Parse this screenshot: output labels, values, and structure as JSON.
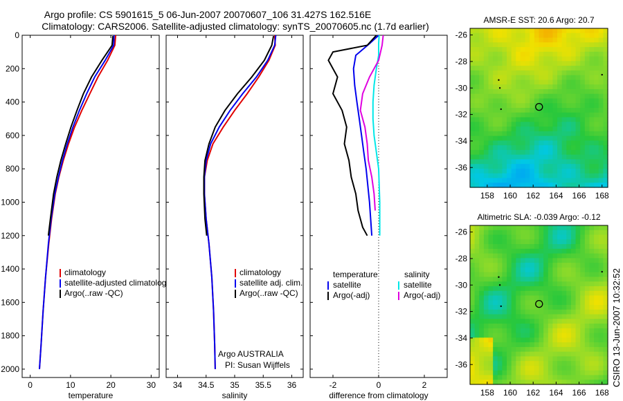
{
  "header": {
    "title_line1": "Argo profile: CS 5901615_5 06-Jun-2007 20070607_106 31.427S 162.516E",
    "title_line2": "Climatology: CARS2006. Satellite-adjusted climatology: synTS_20070605.nc (1.7d earlier)"
  },
  "colors": {
    "climatology": "#e00000",
    "satellite": "#0000ee",
    "argo": "#000000",
    "satellite_salinity": "#00e8e8",
    "argo_salinity": "#e000e0"
  },
  "side_label": "CSIRO 13-Jun-2007 10:32:52",
  "chart_data": [
    {
      "type": "line",
      "xlabel": "temperature",
      "ylabel": "",
      "xlim": [
        -2,
        32
      ],
      "ylim": [
        2050,
        0
      ],
      "y_reversed": true,
      "xticks": [
        "0",
        "10",
        "20",
        "30"
      ],
      "yticks": [
        "0",
        "200",
        "400",
        "600",
        "800",
        "1000",
        "1200",
        "1400",
        "1600",
        "1800",
        "2000"
      ],
      "legend": {
        "placement": "lower-right",
        "entries": [
          "climatology",
          "satellite-adjusted climatology",
          "Argo(..raw -QC)"
        ]
      },
      "series": [
        {
          "name": "climatology",
          "color": "#e00000",
          "x": [
            21.2,
            21.0,
            19.2,
            16.8,
            14.8,
            12.8,
            11.0,
            9.5,
            8.2,
            7.1,
            6.2,
            5.3,
            4.6,
            3.8,
            3.2,
            2.7,
            2.3
          ],
          "y": [
            0,
            60,
            150,
            250,
            350,
            450,
            550,
            650,
            750,
            850,
            950,
            1100,
            1250,
            1450,
            1650,
            1850,
            2000
          ]
        },
        {
          "name": "satellite-adjusted climatology",
          "color": "#0000ee",
          "x": [
            20.8,
            20.7,
            18.6,
            16.0,
            14.0,
            12.2,
            10.6,
            9.2,
            8.0,
            7.0,
            6.1,
            5.2,
            4.5,
            3.8,
            3.2,
            2.7,
            2.3
          ],
          "y": [
            0,
            60,
            150,
            250,
            350,
            450,
            550,
            650,
            750,
            850,
            950,
            1100,
            1250,
            1450,
            1650,
            1850,
            2000
          ]
        },
        {
          "name": "Argo(..raw -QC)",
          "color": "#000000",
          "x": [
            20.5,
            20.3,
            17.8,
            15.2,
            13.2,
            11.6,
            10.1,
            8.8,
            7.6,
            6.6,
            5.8,
            5.0,
            4.5
          ],
          "y": [
            5,
            60,
            150,
            250,
            350,
            450,
            550,
            650,
            750,
            850,
            950,
            1100,
            1200
          ]
        }
      ]
    },
    {
      "type": "line",
      "xlabel": "salinity",
      "xlim": [
        33.8,
        36.2
      ],
      "ylim": [
        2050,
        0
      ],
      "y_reversed": true,
      "xticks": [
        "34",
        "34.5",
        "35",
        "35.5",
        "36"
      ],
      "legend": {
        "placement": "lower-right",
        "entries": [
          "climatology",
          "satellite adj. clim.",
          "Argo(..raw -QC)"
        ]
      },
      "annotation": [
        "Argo AUSTRALIA",
        "PI: Susan Wijffels"
      ],
      "series": [
        {
          "name": "climatology",
          "color": "#e00000",
          "x": [
            35.7,
            35.71,
            35.6,
            35.42,
            35.22,
            35.0,
            34.8,
            34.62,
            34.52,
            34.47,
            34.47,
            34.5,
            34.55,
            34.6,
            34.63,
            34.65,
            34.66
          ],
          "y": [
            0,
            60,
            150,
            250,
            350,
            450,
            550,
            650,
            750,
            850,
            950,
            1100,
            1250,
            1450,
            1650,
            1850,
            2000
          ]
        },
        {
          "name": "satellite adj. clim.",
          "color": "#0000ee",
          "x": [
            35.72,
            35.7,
            35.58,
            35.38,
            35.14,
            34.92,
            34.73,
            34.58,
            34.5,
            34.47,
            34.47,
            34.5,
            34.55,
            34.6,
            34.63,
            34.65,
            34.66
          ],
          "y": [
            0,
            60,
            150,
            250,
            350,
            450,
            550,
            650,
            750,
            850,
            950,
            1100,
            1250,
            1450,
            1650,
            1850,
            2000
          ]
        },
        {
          "name": "Argo(..raw -QC)",
          "color": "#000000",
          "x": [
            35.68,
            35.65,
            35.52,
            35.3,
            35.05,
            34.83,
            34.66,
            34.55,
            34.48,
            34.46,
            34.46,
            34.48,
            34.51
          ],
          "y": [
            5,
            60,
            150,
            250,
            350,
            450,
            550,
            650,
            750,
            850,
            950,
            1100,
            1200
          ]
        }
      ]
    },
    {
      "type": "line",
      "xlabel": "difference from climatology",
      "xlim": [
        -3,
        3
      ],
      "ylim": [
        2050,
        0
      ],
      "y_reversed": true,
      "xticks": [
        "-2",
        "0",
        "2"
      ],
      "legend": {
        "placement": "lower-center",
        "headers": [
          "temperature",
          "salinity"
        ],
        "entries": [
          "satellite",
          "Argo(-adj)",
          "satellite",
          "Argo(-adj)"
        ]
      },
      "series": [
        {
          "name": "temperature satellite",
          "color": "#0000ee",
          "x": [
            0.0,
            -0.4,
            -1.0,
            -1.1,
            -1.05,
            -0.95,
            -0.85,
            -0.75,
            -0.65,
            -0.55,
            -0.4,
            -0.3
          ],
          "y": [
            0,
            50,
            120,
            200,
            300,
            400,
            500,
            600,
            700,
            800,
            1000,
            1200
          ]
        },
        {
          "name": "temperature Argo(-adj)",
          "color": "#000000",
          "x": [
            -0.1,
            -0.5,
            -2.0,
            -2.2,
            -1.8,
            -2.0,
            -1.6,
            -1.4,
            -1.5,
            -1.3,
            -1.2,
            -1.0,
            -0.9,
            -0.8,
            -0.7,
            -0.5
          ],
          "y": [
            0,
            60,
            100,
            150,
            250,
            350,
            450,
            550,
            650,
            750,
            850,
            950,
            1050,
            1100,
            1150,
            1200
          ]
        },
        {
          "name": "salinity satellite",
          "color": "#00e8e8",
          "x": [
            0.02,
            0.0,
            0.0,
            -0.1,
            -0.2,
            -0.25,
            -0.25,
            -0.2,
            -0.1,
            0.0,
            0.05,
            0.05
          ],
          "y": [
            0,
            50,
            120,
            200,
            300,
            400,
            500,
            600,
            700,
            800,
            1000,
            1200
          ]
        },
        {
          "name": "salinity Argo(-adj)",
          "color": "#e000e0",
          "x": [
            0.2,
            0.15,
            0.0,
            -0.4,
            -0.7,
            -0.8,
            -0.6,
            -0.5,
            -0.45,
            -0.3,
            -0.2,
            -0.15
          ],
          "y": [
            0,
            60,
            150,
            250,
            350,
            450,
            550,
            650,
            750,
            850,
            950,
            1050
          ]
        }
      ]
    },
    {
      "type": "heatmap",
      "title": "AMSR-E SST: 20.6 Argo: 20.7",
      "xlim": [
        156.5,
        168.5
      ],
      "ylim": [
        -37.5,
        -25.5
      ],
      "xticks": [
        "158",
        "160",
        "162",
        "164",
        "166",
        "168"
      ],
      "yticks": [
        "-26",
        "-28",
        "-30",
        "-32",
        "-34",
        "-36"
      ],
      "marker": {
        "lon": 162.516,
        "lat": -31.427
      }
    },
    {
      "type": "heatmap",
      "title": "Altimetric SLA: -0.039 Argo: -0.12",
      "xlim": [
        156.5,
        168.5
      ],
      "ylim": [
        -37.5,
        -25.5
      ],
      "xticks": [
        "158",
        "160",
        "162",
        "164",
        "166",
        "168"
      ],
      "yticks": [
        "-26",
        "-28",
        "-30",
        "-32",
        "-34",
        "-36"
      ],
      "marker": {
        "lon": 162.516,
        "lat": -31.427
      }
    }
  ]
}
